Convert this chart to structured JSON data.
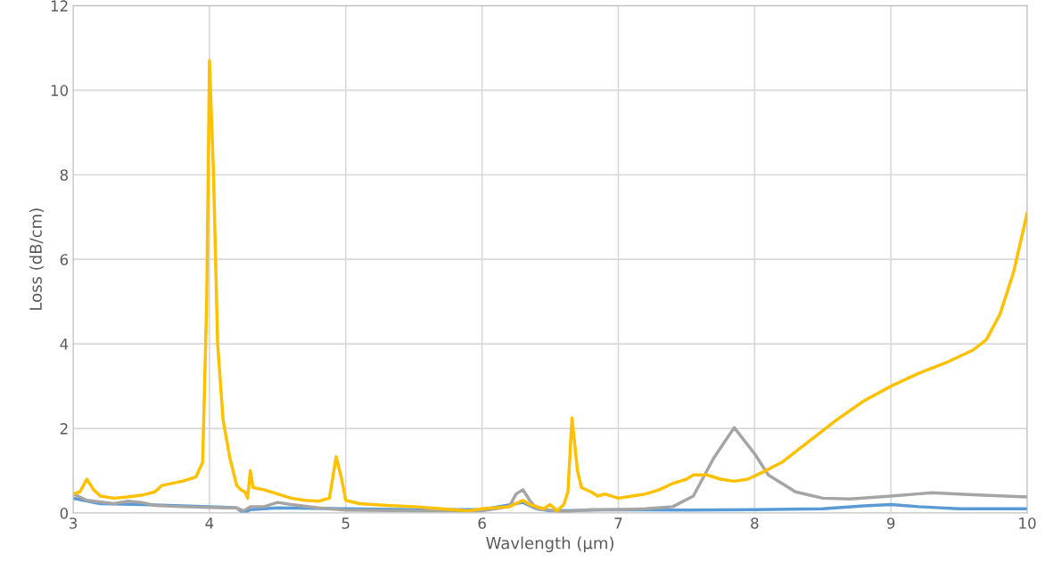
{
  "chart_data": {
    "type": "line",
    "xlabel": "Wavlength (µm)",
    "ylabel": "Loss (dB/cm)",
    "xlim": [
      3,
      10
    ],
    "ylim": [
      0,
      12
    ],
    "xticks": [
      3,
      4,
      5,
      6,
      7,
      8,
      9,
      10
    ],
    "yticks": [
      0,
      2,
      4,
      6,
      8,
      10,
      12
    ],
    "grid": true,
    "marker": "none",
    "line_style": "solid",
    "series": [
      {
        "color": "#5b9bd5",
        "x": [
          3.0,
          3.2,
          3.5,
          4.0,
          4.2,
          4.25,
          4.3,
          4.5,
          5.0,
          5.5,
          6.0,
          6.3,
          6.4,
          6.5,
          7.0,
          7.5,
          8.0,
          8.5,
          8.8,
          9.0,
          9.2,
          9.5,
          10.0
        ],
        "values": [
          0.35,
          0.22,
          0.2,
          0.15,
          0.12,
          0.0,
          0.08,
          0.12,
          0.1,
          0.08,
          0.08,
          0.25,
          0.1,
          0.05,
          0.08,
          0.07,
          0.08,
          0.1,
          0.17,
          0.2,
          0.15,
          0.1,
          0.1
        ]
      },
      {
        "color": "#a5a5a5",
        "x": [
          3.0,
          3.1,
          3.3,
          3.4,
          3.5,
          3.6,
          3.8,
          4.0,
          4.2,
          4.25,
          4.3,
          4.4,
          4.5,
          4.6,
          4.8,
          5.0,
          5.5,
          6.0,
          6.2,
          6.25,
          6.3,
          6.35,
          6.4,
          6.6,
          6.8,
          7.0,
          7.2,
          7.4,
          7.55,
          7.7,
          7.85,
          8.0,
          8.1,
          8.3,
          8.5,
          8.7,
          9.0,
          9.3,
          9.6,
          10.0
        ],
        "values": [
          0.45,
          0.3,
          0.22,
          0.28,
          0.25,
          0.18,
          0.15,
          0.13,
          0.12,
          0.05,
          0.15,
          0.15,
          0.25,
          0.2,
          0.12,
          0.07,
          0.05,
          0.05,
          0.15,
          0.45,
          0.55,
          0.3,
          0.1,
          0.03,
          0.08,
          0.08,
          0.1,
          0.15,
          0.4,
          1.3,
          2.02,
          1.4,
          0.9,
          0.5,
          0.35,
          0.33,
          0.4,
          0.48,
          0.43,
          0.38
        ]
      },
      {
        "color": "#ffc000",
        "x": [
          3.0,
          3.05,
          3.1,
          3.15,
          3.2,
          3.3,
          3.4,
          3.5,
          3.6,
          3.65,
          3.8,
          3.9,
          3.95,
          3.98,
          4.0,
          4.03,
          4.06,
          4.1,
          4.15,
          4.2,
          4.23,
          4.26,
          4.28,
          4.3,
          4.32,
          4.4,
          4.5,
          4.6,
          4.7,
          4.8,
          4.88,
          4.93,
          4.97,
          5.0,
          5.1,
          5.3,
          5.5,
          5.7,
          5.9,
          6.0,
          6.2,
          6.3,
          6.35,
          6.45,
          6.5,
          6.55,
          6.6,
          6.63,
          6.66,
          6.7,
          6.73,
          6.8,
          6.85,
          6.9,
          7.0,
          7.1,
          7.2,
          7.3,
          7.4,
          7.5,
          7.55,
          7.65,
          7.75,
          7.85,
          7.95,
          8.05,
          8.2,
          8.4,
          8.6,
          8.8,
          9.0,
          9.2,
          9.4,
          9.6,
          9.7,
          9.8,
          9.9,
          10.0
        ],
        "values": [
          0.45,
          0.5,
          0.8,
          0.55,
          0.4,
          0.35,
          0.38,
          0.42,
          0.5,
          0.65,
          0.75,
          0.85,
          1.2,
          5,
          10.7,
          8,
          4,
          2.2,
          1.3,
          0.65,
          0.55,
          0.5,
          0.35,
          1.0,
          0.6,
          0.55,
          0.45,
          0.35,
          0.3,
          0.28,
          0.35,
          1.33,
          0.8,
          0.3,
          0.22,
          0.18,
          0.15,
          0.1,
          0.05,
          0.1,
          0.15,
          0.3,
          0.2,
          0.1,
          0.2,
          0.05,
          0.2,
          0.5,
          2.25,
          1.0,
          0.6,
          0.5,
          0.4,
          0.45,
          0.35,
          0.4,
          0.45,
          0.55,
          0.7,
          0.8,
          0.9,
          0.9,
          0.8,
          0.75,
          0.8,
          0.95,
          1.2,
          1.7,
          2.2,
          2.65,
          3.0,
          3.3,
          3.55,
          3.85,
          4.1,
          4.7,
          5.7,
          7.1
        ]
      }
    ]
  }
}
